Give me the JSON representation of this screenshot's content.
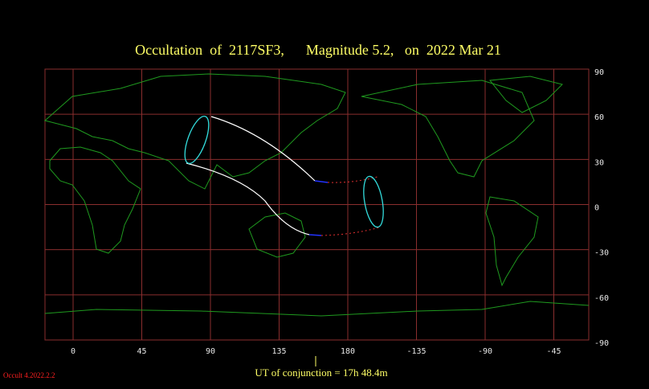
{
  "header": {
    "title": "Occultation  of  2117SF3,      Magnitude 5.2,   on  2022 Mar 21"
  },
  "map": {
    "lat_ticks": [
      90,
      60,
      30,
      0,
      -30,
      -60,
      -90
    ],
    "lon_ticks": [
      0,
      45,
      90,
      135,
      180,
      -135,
      -90,
      -45
    ]
  },
  "footer": {
    "conjunction": "UT of conjunction = 17h 48.4m",
    "version": "Occult 4.2022.2.2"
  }
}
